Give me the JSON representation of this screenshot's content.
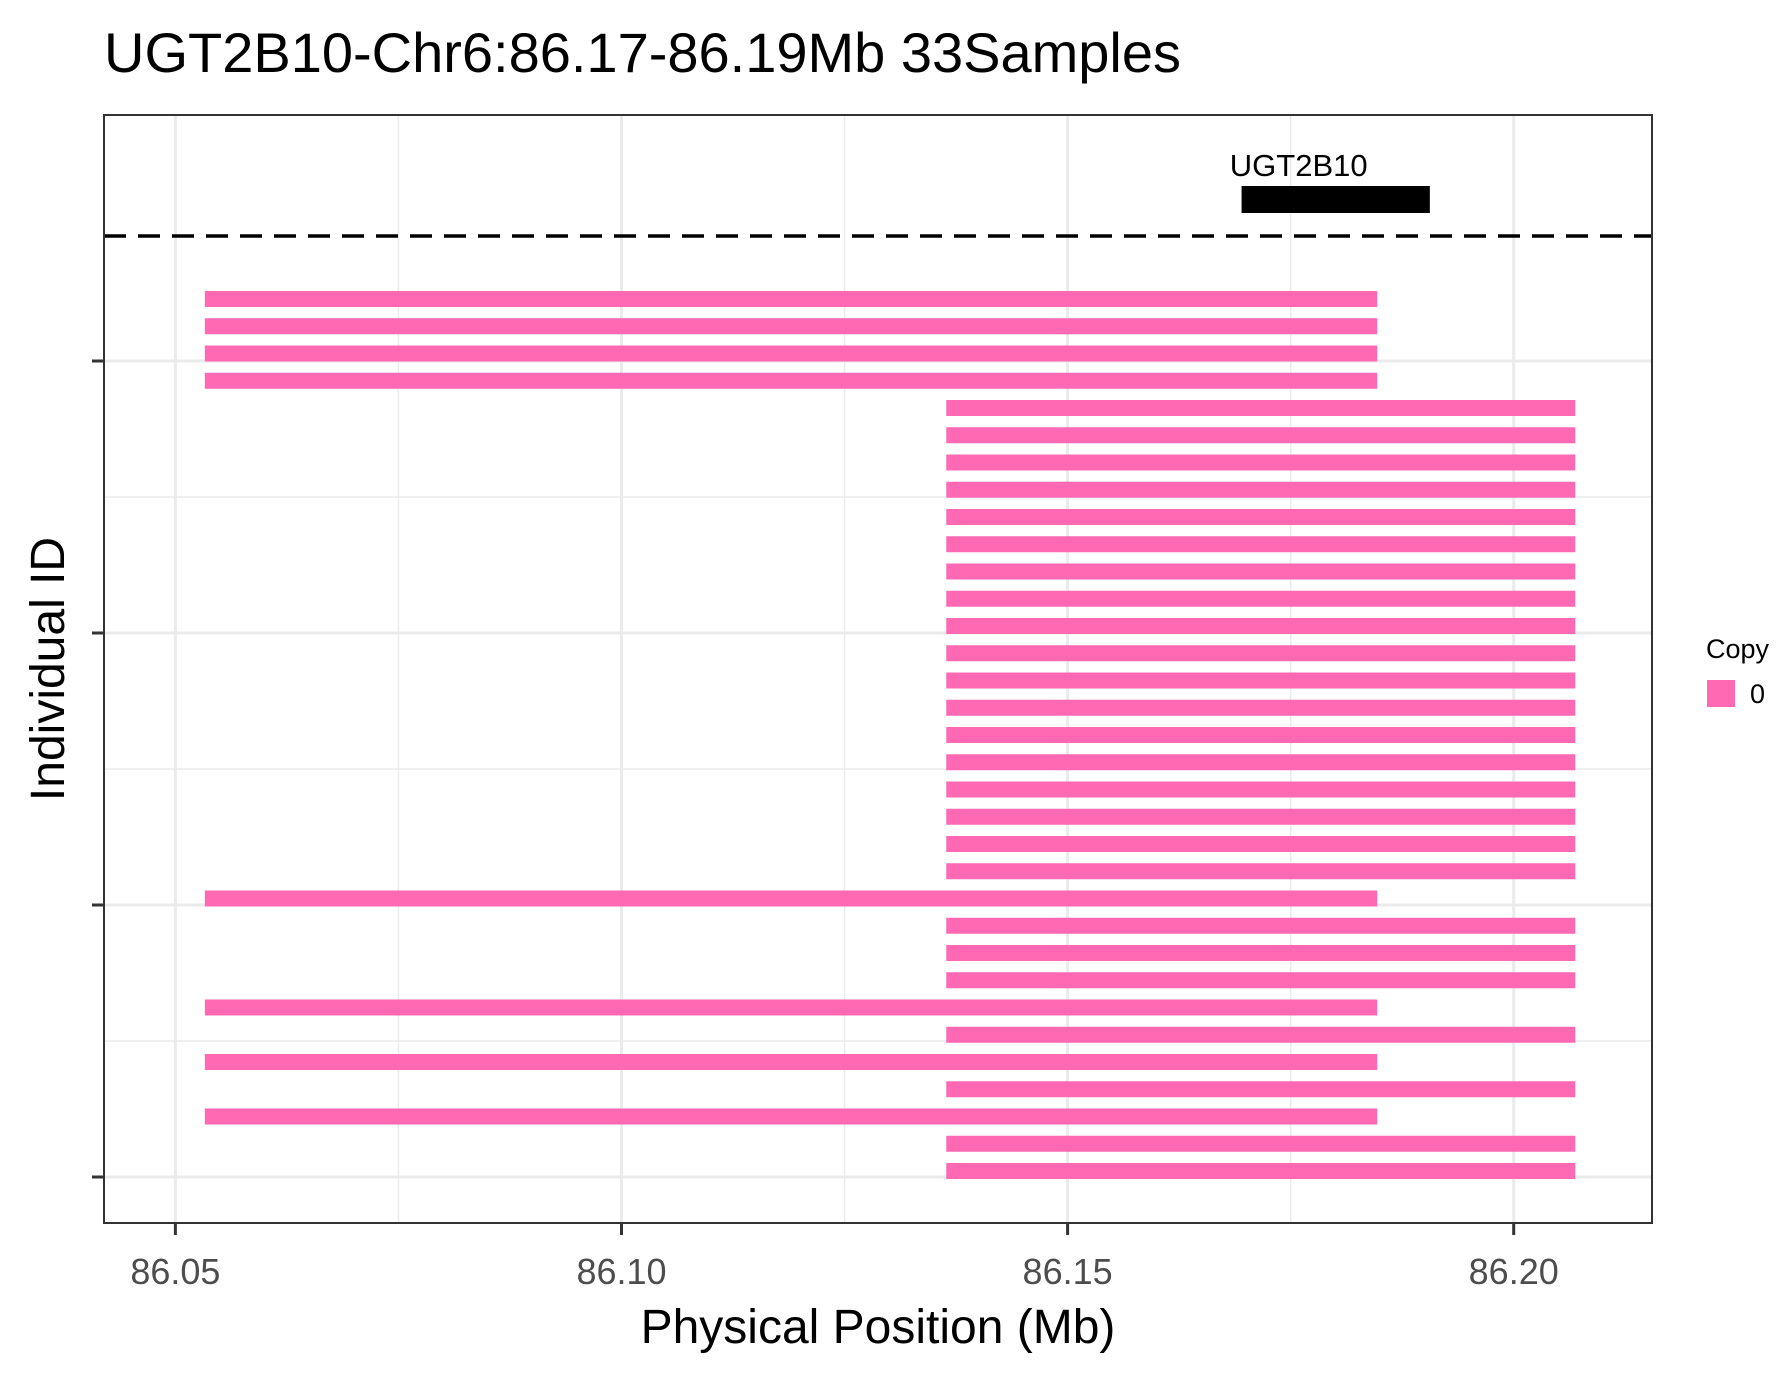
{
  "chart_data": {
    "type": "bar",
    "orientation": "horizontal-segments",
    "title": "UGT2B10-Chr6:86.17-86.19Mb 33Samples",
    "xlabel": "Physical Position (Mb)",
    "ylabel": "Individual ID",
    "xlim": [
      86.042,
      86.2155
    ],
    "x_ticks": [
      86.05,
      86.1,
      86.15,
      86.2
    ],
    "x_tick_labels": [
      "86.05",
      "86.10",
      "86.15",
      "86.20"
    ],
    "grid": true,
    "gene": {
      "name": "UGT2B10",
      "start": 86.1695,
      "end": 86.1906
    },
    "legend": {
      "title": "Copy",
      "placement": "right",
      "items": [
        {
          "label": "0",
          "color": "#ff69b4"
        }
      ]
    },
    "segment_color": "#ff69b4",
    "segments": [
      {
        "start": 86.0533,
        "end": 86.1847
      },
      {
        "start": 86.0533,
        "end": 86.1847
      },
      {
        "start": 86.0533,
        "end": 86.1847
      },
      {
        "start": 86.0533,
        "end": 86.1847
      },
      {
        "start": 86.1364,
        "end": 86.2069
      },
      {
        "start": 86.1364,
        "end": 86.2069
      },
      {
        "start": 86.1364,
        "end": 86.2069
      },
      {
        "start": 86.1364,
        "end": 86.2069
      },
      {
        "start": 86.1364,
        "end": 86.2069
      },
      {
        "start": 86.1364,
        "end": 86.2069
      },
      {
        "start": 86.1364,
        "end": 86.2069
      },
      {
        "start": 86.1364,
        "end": 86.2069
      },
      {
        "start": 86.1364,
        "end": 86.2069
      },
      {
        "start": 86.1364,
        "end": 86.2069
      },
      {
        "start": 86.1364,
        "end": 86.2069
      },
      {
        "start": 86.1364,
        "end": 86.2069
      },
      {
        "start": 86.1364,
        "end": 86.2069
      },
      {
        "start": 86.1364,
        "end": 86.2069
      },
      {
        "start": 86.1364,
        "end": 86.2069
      },
      {
        "start": 86.1364,
        "end": 86.2069
      },
      {
        "start": 86.1364,
        "end": 86.2069
      },
      {
        "start": 86.1364,
        "end": 86.2069
      },
      {
        "start": 86.0533,
        "end": 86.1847
      },
      {
        "start": 86.1364,
        "end": 86.2069
      },
      {
        "start": 86.1364,
        "end": 86.2069
      },
      {
        "start": 86.1364,
        "end": 86.2069
      },
      {
        "start": 86.0533,
        "end": 86.1847
      },
      {
        "start": 86.1364,
        "end": 86.2069
      },
      {
        "start": 86.0533,
        "end": 86.1847
      },
      {
        "start": 86.1364,
        "end": 86.2069
      },
      {
        "start": 86.0533,
        "end": 86.1847
      },
      {
        "start": 86.1364,
        "end": 86.2069
      },
      {
        "start": 86.1364,
        "end": 86.2069
      }
    ]
  }
}
